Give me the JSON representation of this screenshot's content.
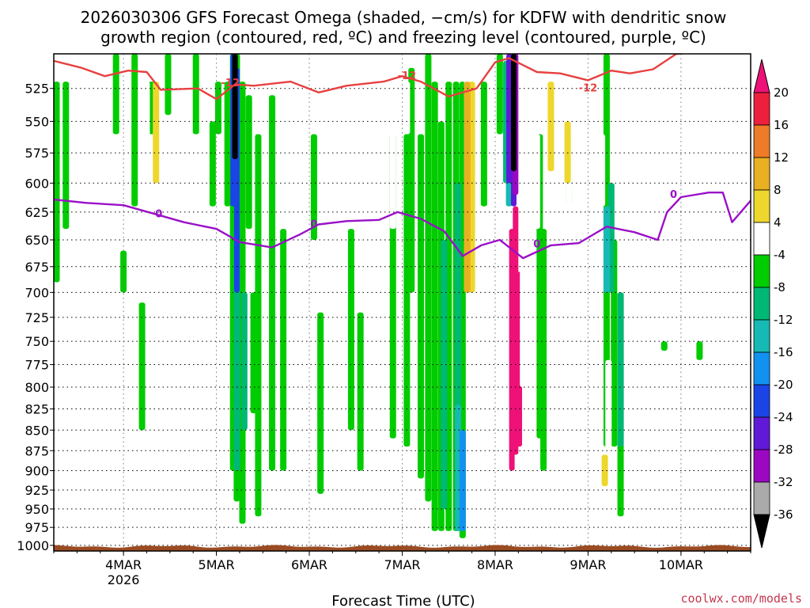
{
  "chart_data": {
    "type": "heatmap",
    "title_lines": [
      "2026030306 GFS Forecast Omega (shaded, −cm/s) for KDFW with dendritic snow",
      "growth region (contoured, red, ºC) and freezing level (contoured, purple, ºC)"
    ],
    "xlabel": "Forecast Time (UTC)",
    "x_ticks": [
      {
        "label": "4MAR",
        "sub": "2026",
        "day": 4
      },
      {
        "label": "5MAR",
        "sub": "",
        "day": 5
      },
      {
        "label": "6MAR",
        "sub": "",
        "day": 6
      },
      {
        "label": "7MAR",
        "sub": "",
        "day": 7
      },
      {
        "label": "8MAR",
        "sub": "",
        "day": 8
      },
      {
        "label": "9MAR",
        "sub": "",
        "day": 9
      },
      {
        "label": "10MAR",
        "sub": "",
        "day": 10
      }
    ],
    "x_range_day": [
      3.25,
      10.75
    ],
    "y_ticks": [
      525,
      550,
      575,
      600,
      625,
      650,
      675,
      700,
      725,
      750,
      775,
      800,
      825,
      850,
      875,
      900,
      925,
      950,
      975,
      1000
    ],
    "y_range_hpa": [
      500,
      1008
    ],
    "y_scale": "log-pressure",
    "grid": "dotted",
    "colorbar": {
      "levels": [
        20,
        16,
        12,
        8,
        4,
        -4,
        -8,
        -12,
        -16,
        -20,
        -24,
        -28,
        -32,
        -36
      ],
      "colors": [
        "#ec1f3c",
        "#ee7b27",
        "#e8b022",
        "#eed72c",
        "#ffffff",
        "#00cc00",
        "#00b875",
        "#17b9b4",
        "#1292f0",
        "#1a44e6",
        "#6019d6",
        "#9b08c2",
        "#aaaaaa"
      ],
      "top_arrow_color": "#ee1177",
      "bottom_arrow_color": "#000000"
    },
    "contours": [
      {
        "name": "-12",
        "color": "#e84040",
        "points": [
          [
            3.25,
            505
          ],
          [
            3.55,
            510
          ],
          [
            3.8,
            516
          ],
          [
            4.05,
            512
          ],
          [
            4.25,
            513
          ],
          [
            4.4,
            526
          ],
          [
            4.8,
            525
          ],
          [
            5.0,
            533
          ],
          [
            5.2,
            522
          ],
          [
            5.4,
            523
          ],
          [
            5.8,
            520
          ],
          [
            6.1,
            528
          ],
          [
            6.4,
            523
          ],
          [
            6.8,
            520
          ],
          [
            7.0,
            516
          ],
          [
            7.2,
            520
          ],
          [
            7.5,
            531
          ],
          [
            7.8,
            525
          ],
          [
            8.0,
            506
          ],
          [
            8.15,
            503
          ],
          [
            8.45,
            513
          ],
          [
            8.7,
            514
          ],
          [
            9.0,
            519
          ],
          [
            9.25,
            512
          ],
          [
            9.45,
            514
          ],
          [
            9.7,
            511
          ],
          [
            9.95,
            500
          ],
          [
            10.75,
            496
          ]
        ],
        "labels": [
          [
            5.15,
            521
          ],
          [
            7.05,
            516
          ],
          [
            9.0,
            525
          ]
        ]
      },
      {
        "name": "0",
        "color": "#9a10c8",
        "points": [
          [
            3.25,
            614
          ],
          [
            3.6,
            617
          ],
          [
            4.0,
            619
          ],
          [
            4.35,
            627
          ],
          [
            4.65,
            634
          ],
          [
            5.0,
            640
          ],
          [
            5.25,
            652
          ],
          [
            5.6,
            657
          ],
          [
            5.9,
            645
          ],
          [
            6.1,
            636
          ],
          [
            6.4,
            633
          ],
          [
            6.75,
            632
          ],
          [
            6.95,
            625
          ],
          [
            7.2,
            631
          ],
          [
            7.45,
            642
          ],
          [
            7.65,
            665
          ],
          [
            7.85,
            655
          ],
          [
            8.05,
            650
          ],
          [
            8.3,
            667
          ],
          [
            8.6,
            655
          ],
          [
            8.9,
            653
          ],
          [
            9.2,
            638
          ],
          [
            9.5,
            643
          ],
          [
            9.75,
            650
          ],
          [
            9.85,
            625
          ],
          [
            10.0,
            612
          ],
          [
            10.3,
            608
          ],
          [
            10.45,
            608
          ],
          [
            10.55,
            634
          ],
          [
            10.75,
            615
          ]
        ],
        "labels": [
          [
            4.38,
            627
          ],
          [
            6.05,
            636
          ],
          [
            8.45,
            654
          ],
          [
            9.92,
            610
          ]
        ]
      }
    ],
    "bands": [
      [
        3.28,
        520,
        690,
        -4
      ],
      [
        3.38,
        520,
        640,
        -4
      ],
      [
        3.92,
        500,
        560,
        -4
      ],
      [
        4.0,
        660,
        700,
        -4
      ],
      [
        4.12,
        500,
        620,
        -4
      ],
      [
        4.2,
        710,
        850,
        -4
      ],
      [
        4.3,
        520,
        560,
        -4
      ],
      [
        4.48,
        500,
        545,
        -4
      ],
      [
        4.78,
        500,
        560,
        -4
      ],
      [
        4.96,
        550,
        620,
        -4
      ],
      [
        5.02,
        520,
        560,
        -4
      ],
      [
        5.12,
        520,
        620,
        -4
      ],
      [
        5.18,
        500,
        900,
        -4
      ],
      [
        5.22,
        500,
        940,
        -4
      ],
      [
        5.28,
        520,
        970,
        -4
      ],
      [
        5.35,
        530,
        640,
        -4
      ],
      [
        5.4,
        700,
        830,
        -4
      ],
      [
        5.45,
        560,
        960,
        -4
      ],
      [
        5.6,
        530,
        900,
        -4
      ],
      [
        5.72,
        640,
        900,
        -4
      ],
      [
        6.05,
        560,
        650,
        -4
      ],
      [
        6.12,
        720,
        930,
        -4
      ],
      [
        6.45,
        640,
        850,
        -4
      ],
      [
        6.55,
        720,
        900,
        -4
      ],
      [
        6.9,
        560,
        860,
        -4
      ],
      [
        7.05,
        560,
        870,
        -4
      ],
      [
        7.1,
        510,
        700,
        -4
      ],
      [
        7.2,
        560,
        910,
        -4
      ],
      [
        7.28,
        500,
        940,
        -4
      ],
      [
        7.35,
        520,
        980,
        -4
      ],
      [
        7.42,
        550,
        980,
        -4
      ],
      [
        7.5,
        520,
        980,
        -4
      ],
      [
        7.58,
        520,
        980,
        -4
      ],
      [
        7.65,
        520,
        990,
        -4
      ],
      [
        7.72,
        520,
        700,
        -4
      ],
      [
        7.88,
        520,
        620,
        -4
      ],
      [
        8.05,
        500,
        560,
        -4
      ],
      [
        8.48,
        560,
        860,
        -4
      ],
      [
        8.52,
        640,
        900,
        -4
      ],
      [
        8.8,
        560,
        620,
        -4
      ],
      [
        9.2,
        500,
        870,
        -4
      ],
      [
        9.28,
        650,
        870,
        -4
      ],
      [
        9.35,
        700,
        960,
        -4
      ],
      [
        9.82,
        750,
        760,
        -4
      ],
      [
        10.2,
        750,
        770,
        -4
      ],
      [
        5.22,
        640,
        900,
        -8
      ],
      [
        5.3,
        700,
        850,
        -8
      ],
      [
        7.45,
        650,
        950,
        -8
      ],
      [
        7.6,
        600,
        980,
        -8
      ],
      [
        8.12,
        505,
        600,
        -8
      ],
      [
        9.25,
        600,
        700,
        -8
      ],
      [
        9.35,
        700,
        870,
        -8
      ],
      [
        7.6,
        820,
        980,
        -12
      ],
      [
        8.15,
        520,
        620,
        -12
      ],
      [
        9.2,
        620,
        700,
        -12
      ],
      [
        7.65,
        850,
        980,
        -16
      ],
      [
        8.15,
        520,
        600,
        -16
      ],
      [
        5.18,
        500,
        620,
        -20
      ],
      [
        5.22,
        510,
        700,
        -20
      ],
      [
        8.15,
        500,
        600,
        -24
      ],
      [
        8.2,
        500,
        620,
        -24
      ],
      [
        8.22,
        500,
        610,
        -28
      ],
      [
        8.2,
        500,
        590,
        -36
      ],
      [
        5.2,
        500,
        580,
        -36
      ],
      [
        8.18,
        640,
        900,
        20
      ],
      [
        8.22,
        620,
        880,
        20
      ],
      [
        8.26,
        680,
        870,
        20
      ],
      [
        3.55,
        640,
        720,
        4
      ],
      [
        4.25,
        520,
        600,
        4
      ],
      [
        4.35,
        560,
        680,
        4
      ],
      [
        4.6,
        500,
        620,
        4
      ],
      [
        4.68,
        660,
        870,
        4
      ],
      [
        5.05,
        860,
        930,
        4
      ],
      [
        6.05,
        900,
        920,
        4
      ],
      [
        6.35,
        740,
        930,
        4
      ],
      [
        6.9,
        500,
        640,
        4
      ],
      [
        7.05,
        520,
        560,
        4
      ],
      [
        7.7,
        500,
        700,
        4
      ],
      [
        8.3,
        560,
        800,
        4
      ],
      [
        8.45,
        560,
        640,
        4
      ],
      [
        8.55,
        520,
        600,
        4
      ],
      [
        8.72,
        520,
        600,
        4
      ],
      [
        8.8,
        550,
        640,
        4
      ],
      [
        9.15,
        560,
        620,
        4
      ],
      [
        9.22,
        770,
        960,
        4
      ],
      [
        10.15,
        520,
        700,
        4
      ],
      [
        10.35,
        760,
        880,
        4
      ],
      [
        10.7,
        550,
        640,
        4
      ],
      [
        4.35,
        520,
        600,
        8
      ],
      [
        7.75,
        520,
        700,
        8
      ],
      [
        8.6,
        520,
        590,
        8
      ],
      [
        8.78,
        550,
        600,
        8
      ],
      [
        9.18,
        880,
        920,
        8
      ],
      [
        7.7,
        520,
        700,
        12
      ]
    ],
    "bands_note": "[forecast day, top hPa, bottom hPa, omega level]",
    "terrain_color": "#9b4b22"
  },
  "credit": "coolwx.com/models",
  "colors": {
    "background": "#ffffff",
    "frame": "#000000",
    "grid": "#000000"
  }
}
